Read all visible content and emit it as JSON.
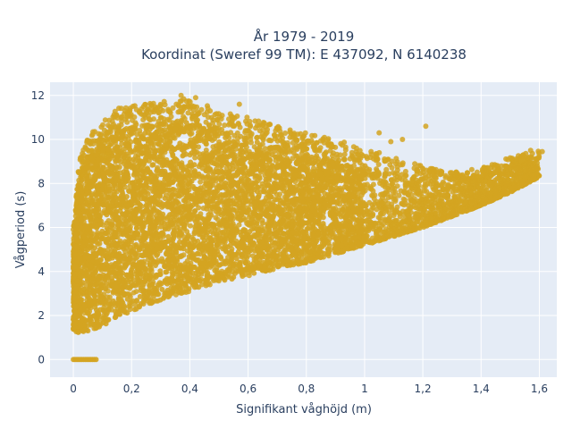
{
  "chart_data": {
    "type": "scatter",
    "title_line1": "År 1979 - 2019",
    "title_line2": "Koordinat (Sweref 99 TM): E 437092, N 6140238",
    "xlabel": "Signifikant våghöjd (m)",
    "ylabel": "Vågperiod (s)",
    "xlim": [
      -0.08,
      1.66
    ],
    "ylim": [
      -0.8,
      12.6
    ],
    "x_ticks": [
      0,
      0.2,
      0.4,
      0.6,
      0.8,
      1,
      1.2,
      1.4,
      1.6
    ],
    "x_tick_labels": [
      "0",
      "0,2",
      "0,4",
      "0,6",
      "0,8",
      "1",
      "1,2",
      "1,4",
      "1,6"
    ],
    "y_ticks": [
      0,
      2,
      4,
      6,
      8,
      10,
      12
    ],
    "y_tick_labels": [
      "0",
      "2",
      "4",
      "6",
      "8",
      "10",
      "12"
    ],
    "grid": true,
    "marker_color": "#d4a421",
    "background_color": "#e5ecf6",
    "envelope": {
      "x": [
        0.0,
        0.02,
        0.05,
        0.1,
        0.15,
        0.2,
        0.3,
        0.4,
        0.5,
        0.6,
        0.7,
        0.8,
        0.9,
        1.0,
        1.1,
        1.2,
        1.3,
        1.4,
        1.5,
        1.6
      ],
      "y_lower": [
        1.3,
        1.2,
        1.3,
        1.5,
        1.9,
        2.2,
        2.7,
        3.1,
        3.5,
        3.8,
        4.1,
        4.4,
        4.8,
        5.2,
        5.6,
        6.0,
        6.5,
        7.0,
        7.6,
        8.3
      ],
      "y_upper": [
        6.0,
        9.0,
        10.3,
        10.8,
        11.4,
        11.6,
        11.7,
        11.9,
        11.3,
        11.0,
        10.6,
        10.3,
        10.0,
        9.6,
        9.2,
        8.8,
        8.5,
        8.7,
        9.2,
        9.5
      ]
    },
    "zero_period_points": {
      "x_min": 0.0,
      "x_max": 0.08,
      "y": 0
    },
    "outliers": [
      {
        "x": 0.37,
        "y": 12.0
      },
      {
        "x": 0.42,
        "y": 11.9
      },
      {
        "x": 0.57,
        "y": 11.6
      },
      {
        "x": 1.05,
        "y": 10.3
      },
      {
        "x": 1.13,
        "y": 10.0
      },
      {
        "x": 1.21,
        "y": 10.6
      },
      {
        "x": 1.09,
        "y": 9.9
      },
      {
        "x": 1.57,
        "y": 9.5
      },
      {
        "x": 1.61,
        "y": 9.45
      }
    ]
  }
}
